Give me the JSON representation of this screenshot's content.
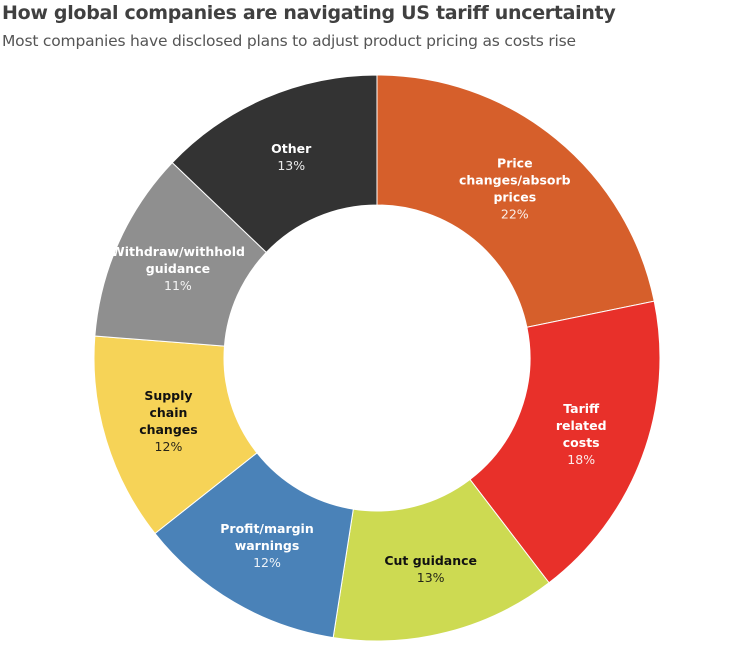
{
  "chart_data": {
    "type": "pie",
    "donut": true,
    "title": "How global companies are navigating US tariff uncertainty",
    "subtitle": "Most companies have disclosed plans to adjust product pricing as costs rise",
    "start": "top",
    "direction": "clockwise",
    "slices": [
      {
        "label": "Price changes/absorb prices",
        "lines": [
          "Price",
          "changes/absorb",
          "prices"
        ],
        "value": 22,
        "value_label": "22%",
        "color": "#D65F2B",
        "text_color": "#ffffff"
      },
      {
        "label": "Tariff related costs",
        "lines": [
          "Tariff",
          "related",
          "costs"
        ],
        "value": 18,
        "value_label": "18%",
        "color": "#E8302A",
        "text_color": "#ffffff"
      },
      {
        "label": "Cut guidance",
        "lines": [
          "Cut guidance"
        ],
        "value": 13,
        "value_label": "13%",
        "color": "#CDDA52",
        "text_color": "#111111"
      },
      {
        "label": "Profit/margin warnings",
        "lines": [
          "Profit/margin",
          "warnings"
        ],
        "value": 12,
        "value_label": "12%",
        "color": "#4A82B8",
        "text_color": "#ffffff"
      },
      {
        "label": "Supply chain changes",
        "lines": [
          "Supply",
          "chain",
          "changes"
        ],
        "value": 12,
        "value_label": "12%",
        "color": "#F6D357",
        "text_color": "#111111"
      },
      {
        "label": "Withdraw/withhold guidance",
        "lines": [
          "Withdraw/withhold",
          "guidance"
        ],
        "value": 11,
        "value_label": "11%",
        "color": "#8F8F8F",
        "text_color": "#ffffff"
      },
      {
        "label": "Other",
        "lines": [
          "Other"
        ],
        "value": 13,
        "value_label": "13%",
        "color": "#333333",
        "text_color": "#ffffff"
      }
    ]
  }
}
